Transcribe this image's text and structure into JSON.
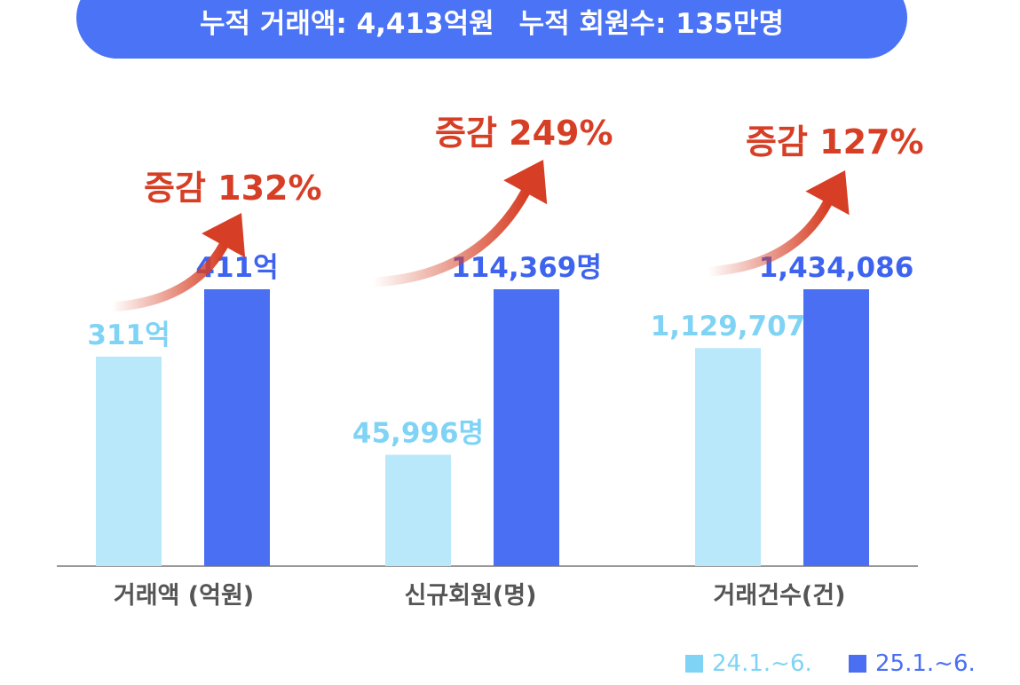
{
  "banner": {
    "total_amount": "누적 거래액: 4,413억원",
    "total_members": "누적 회원수: 135만명"
  },
  "colors": {
    "series_2024": "#b9e8fb",
    "series_2024_label": "#7fd3f5",
    "series_2025": "#4a6ff3",
    "series_2025_label": "#3d63ef",
    "increase_text": "#d63f25",
    "axis_label": "#555555",
    "axis_line": "#999999"
  },
  "chart_data": {
    "type": "bar",
    "categories": [
      "거래액 (억원)",
      "신규회원(명)",
      "거래건수(건)"
    ],
    "series": [
      {
        "name": "24.1.~6.",
        "values": [
          311,
          45996,
          1129707
        ],
        "labels": [
          "311억",
          "45,996명",
          "1,129,707"
        ]
      },
      {
        "name": "25.1.~6.",
        "values": [
          411,
          114369,
          1434086
        ],
        "labels": [
          "411억",
          "114,369명",
          "1,434,086"
        ]
      }
    ],
    "annotations": [
      "증감 132%",
      "증감 249%",
      "증감 127%"
    ],
    "legend_position": "bottom-right",
    "grid": false
  }
}
